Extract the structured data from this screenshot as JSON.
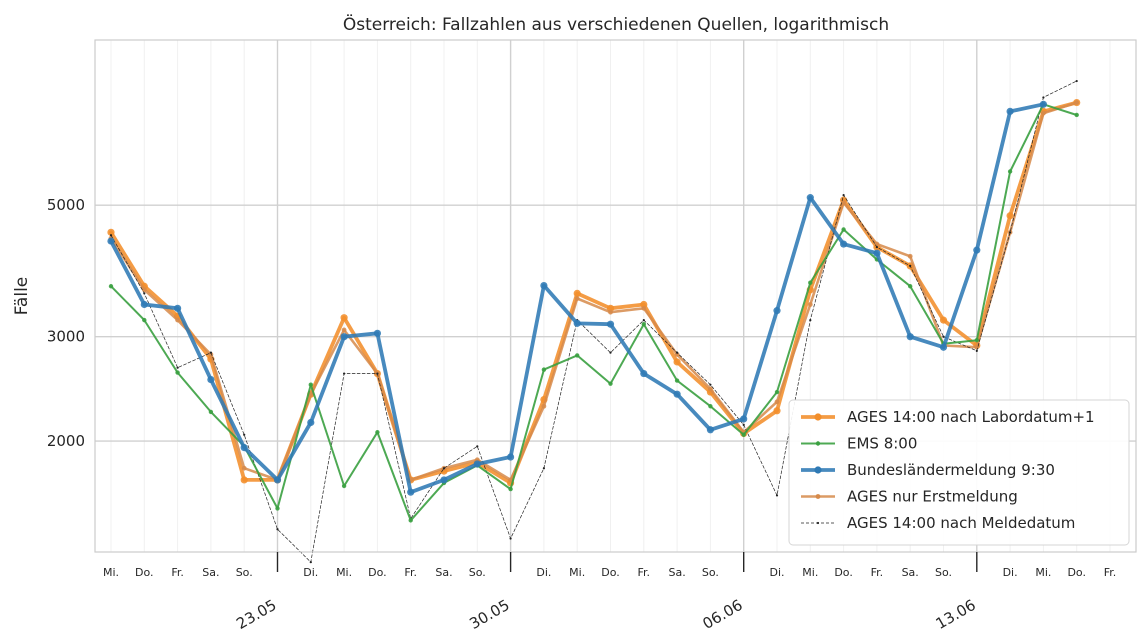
{
  "chart_data": {
    "type": "line",
    "title": "Österreich: Fallzahlen aus verschiedenen Quellen, logarithmisch",
    "ylabel": "Fälle",
    "xlabel": "",
    "yscale": "log",
    "ylim": [
      1300,
      9500
    ],
    "yticks": [
      2000,
      3000,
      5000
    ],
    "yticklabels": [
      "2000",
      "3000",
      "5000"
    ],
    "grid": true,
    "legend_position": "lower-right",
    "day_labels": [
      "Mi.",
      "Do.",
      "Fr.",
      "Sa.",
      "So.",
      "",
      "Di.",
      "Mi.",
      "Do.",
      "Fr.",
      "Sa.",
      "So.",
      "",
      "Di.",
      "Mi.",
      "Do.",
      "Fr.",
      "Sa.",
      "So.",
      "",
      "Di.",
      "Mi.",
      "Do.",
      "Fr.",
      "Sa.",
      "So.",
      "",
      "Di.",
      "Mi.",
      "Do.",
      "Fr."
    ],
    "week_ticks": [
      {
        "index": 5,
        "label": "23.05"
      },
      {
        "index": 12,
        "label": "30.05"
      },
      {
        "index": 19,
        "label": "06.06"
      },
      {
        "index": 26,
        "label": "13.06"
      }
    ],
    "series": [
      {
        "name": "AGES 14:00 nach Labordatum+1",
        "color": "#f28e2b",
        "style": "thick",
        "values": [
          4500,
          3650,
          3250,
          2750,
          1720,
          1720,
          2400,
          3230,
          2600,
          1720,
          1780,
          1840,
          1700,
          2350,
          3550,
          3350,
          3400,
          2720,
          2420,
          2060,
          2250,
          3600,
          5100,
          4250,
          3950,
          3200,
          2900,
          4800,
          7200,
          7450,
          null
        ]
      },
      {
        "name": "EMS 8:00",
        "color": "#3aa040",
        "style": "thin",
        "values": [
          3650,
          3200,
          2610,
          2240,
          1960,
          1540,
          2490,
          1680,
          2070,
          1470,
          1700,
          1820,
          1660,
          2640,
          2790,
          2500,
          3150,
          2530,
          2290,
          2050,
          2420,
          3700,
          4550,
          4050,
          3650,
          2920,
          2960,
          5700,
          7400,
          7100,
          null
        ]
      },
      {
        "name": "Bundesländermeldung 9:30",
        "color": "#2f7ab5",
        "style": "thick",
        "values": [
          4350,
          3400,
          3350,
          2540,
          1950,
          1720,
          2150,
          3000,
          3040,
          1640,
          1720,
          1830,
          1880,
          3660,
          3160,
          3150,
          2600,
          2400,
          2090,
          2180,
          3320,
          5150,
          4300,
          4150,
          3000,
          2880,
          4200,
          7200,
          7400,
          null,
          null
        ]
      },
      {
        "name": "AGES nur Erstmeldung",
        "color": "#d68a4a",
        "style": "medium",
        "values": [
          4400,
          3600,
          3200,
          2800,
          1800,
          1720,
          2400,
          3080,
          2600,
          1720,
          1800,
          1860,
          1720,
          2290,
          3480,
          3300,
          3350,
          2800,
          2450,
          2070,
          2330,
          3400,
          5050,
          4300,
          4100,
          2900,
          2880,
          4500,
          7150,
          7450,
          null
        ]
      },
      {
        "name": "AGES 14:00 nach Meldedatum",
        "color": "#222222",
        "style": "dashed",
        "values": [
          4450,
          3550,
          2660,
          2820,
          2050,
          1420,
          1250,
          2600,
          2600,
          1480,
          1800,
          1960,
          1370,
          1800,
          3200,
          2820,
          3200,
          2820,
          2490,
          2130,
          1620,
          3200,
          5200,
          4250,
          3950,
          3000,
          2840,
          4500,
          7600,
          8100,
          null
        ]
      }
    ]
  }
}
